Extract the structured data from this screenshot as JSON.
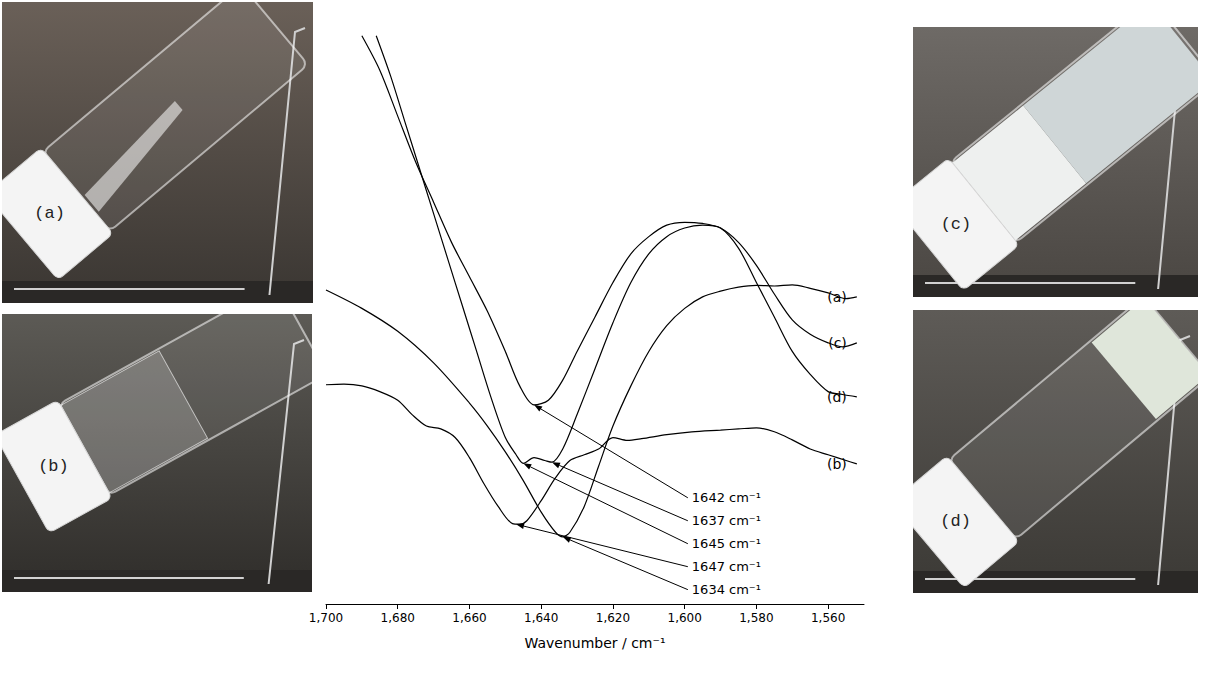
{
  "chart_data": {
    "type": "line",
    "x_label": "Wavenumber / cm⁻¹",
    "xlim": [
      1550,
      1700
    ],
    "xticks": [
      1560,
      1580,
      1600,
      1620,
      1640,
      1660,
      1680,
      1700
    ],
    "ylim": [
      0,
      100
    ],
    "grid": false,
    "tick_labels": "x",
    "series": [
      {
        "name": "(a)",
        "color": "#000000",
        "x": [
          1700,
          1690,
          1680,
          1670,
          1660,
          1655,
          1650,
          1645,
          1640,
          1636,
          1634,
          1632,
          1628,
          1624,
          1620,
          1615,
          1610,
          1605,
          1600,
          1595,
          1590,
          1585,
          1580,
          1575,
          1570,
          1565,
          1560,
          1555,
          1552
        ],
        "values": [
          54.7,
          51.5,
          47.5,
          42,
          35,
          31,
          26.5,
          21.5,
          16,
          12.5,
          11.7,
          12.5,
          17,
          24,
          31,
          38,
          44,
          48.5,
          51.5,
          53.5,
          54.5,
          55.2,
          55.5,
          55.4,
          55.6,
          55,
          54.2,
          53.2,
          53.5
        ]
      },
      {
        "name": "(b)",
        "color": "#000000",
        "x": [
          1700,
          1695,
          1690,
          1685,
          1680,
          1676,
          1672,
          1668,
          1664,
          1660,
          1656,
          1652,
          1648,
          1646,
          1644,
          1640,
          1636,
          1632,
          1628,
          1624,
          1620,
          1616,
          1612,
          1605,
          1598,
          1590,
          1585,
          1580,
          1575,
          1570,
          1565,
          1560,
          1555,
          1552
        ],
        "values": [
          38.2,
          38.3,
          38,
          37,
          35.5,
          33,
          31,
          30.5,
          29,
          25.5,
          21,
          17,
          14,
          13.9,
          14.5,
          18,
          22,
          25,
          26,
          27,
          29,
          28.5,
          28.8,
          29.5,
          30,
          30.3,
          30.5,
          30.7,
          30,
          28.6,
          27,
          26,
          25,
          24.4
        ]
      },
      {
        "name": "(c)",
        "color": "#000000",
        "x": [
          1690,
          1685,
          1680,
          1675,
          1670,
          1665,
          1660,
          1655,
          1650,
          1646,
          1642,
          1638,
          1634,
          1630,
          1625,
          1620,
          1615,
          1610,
          1605,
          1600,
          1595,
          1590,
          1585,
          1580,
          1575,
          1570,
          1565,
          1560,
          1556,
          1552
        ],
        "values": [
          99,
          93,
          85,
          77,
          70,
          63,
          57,
          51,
          44,
          38,
          34.7,
          35.5,
          39,
          44,
          50,
          56,
          61,
          64,
          66,
          66.5,
          66.3,
          65.5,
          63,
          59,
          54,
          49.5,
          47,
          45.5,
          44.8,
          45.5
        ]
      },
      {
        "name": "(d)",
        "color": "#000000",
        "x": [
          1686,
          1682,
          1678,
          1674,
          1670,
          1666,
          1662,
          1658,
          1654,
          1650,
          1647,
          1645,
          1642,
          1639,
          1637,
          1634,
          1630,
          1625,
          1620,
          1615,
          1610,
          1605,
          1600,
          1595,
          1590,
          1585,
          1580,
          1575,
          1570,
          1565,
          1560,
          1556,
          1552
        ],
        "values": [
          99,
          92,
          84,
          76,
          68,
          60,
          52,
          44,
          36,
          29,
          26,
          24.5,
          25.5,
          25,
          24.7,
          27,
          33,
          41,
          49,
          56,
          61,
          64,
          65.5,
          66,
          65.5,
          62,
          56,
          50,
          44,
          40,
          37,
          36.5,
          36.1
        ]
      }
    ],
    "annotations": [
      {
        "text": "1642 cm⁻¹",
        "x": 1642,
        "y": 34.7
      },
      {
        "text": "1637 cm⁻¹",
        "x": 1637,
        "y": 24.7
      },
      {
        "text": "1645 cm⁻¹",
        "x": 1645,
        "y": 24.5
      },
      {
        "text": "1647 cm⁻¹",
        "x": 1647,
        "y": 13.9
      },
      {
        "text": "1634 cm⁻¹",
        "x": 1634,
        "y": 11.7
      }
    ]
  },
  "photos": [
    "(a)",
    "(b)",
    "(c)",
    "(d)"
  ]
}
